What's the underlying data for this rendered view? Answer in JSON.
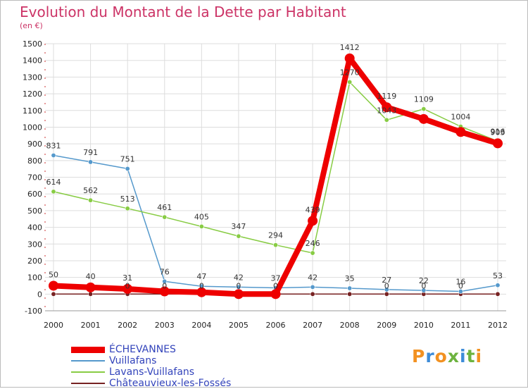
{
  "title": "Evolution du Montant de la Dette par Habitant",
  "subtitle": "(en €)",
  "brand": {
    "letters": [
      "P",
      "r",
      "o",
      "x",
      "i",
      "t",
      "i"
    ],
    "colors": [
      "#f29121",
      "#3d8cd8",
      "#f29121",
      "#6db33f",
      "#3d8cd8",
      "#6db33f",
      "#f29121"
    ]
  },
  "chart_data": {
    "type": "line",
    "x": [
      "2000",
      "2001",
      "2002",
      "2003",
      "2004",
      "2005",
      "2006",
      "2007",
      "2008",
      "2009",
      "2010",
      "2011",
      "2012"
    ],
    "ylim": [
      -100,
      1500
    ],
    "yticks": [
      "-100",
      "0",
      "100",
      "200",
      "300",
      "400",
      "500",
      "600",
      "700",
      "800",
      "900",
      "1000",
      "1100",
      "1200",
      "1300",
      "1400",
      "1500"
    ],
    "grid": true,
    "legend_position": "bottom-left",
    "series": [
      {
        "name": "ÉCHEVANNES",
        "color": "#ee0000",
        "values": [
          50,
          40,
          31,
          16,
          11,
          0,
          0,
          439,
          1412,
          1119,
          1049,
          971,
          903
        ],
        "labels": [
          "50",
          "40",
          "31",
          "",
          "",
          "",
          "",
          "439",
          "1412",
          "1119",
          "",
          "",
          "903"
        ]
      },
      {
        "name": "Vuillafans",
        "color": "#5599cc",
        "values": [
          831,
          791,
          751,
          76,
          47,
          42,
          37,
          42,
          35,
          27,
          22,
          16,
          53
        ],
        "labels": [
          "831",
          "791",
          "751",
          "76",
          "47",
          "42",
          "37",
          "42",
          "35",
          "27",
          "22",
          "16",
          "53"
        ]
      },
      {
        "name": "Lavans-Vuillafans",
        "color": "#88cc44",
        "values": [
          614,
          562,
          513,
          461,
          405,
          347,
          294,
          246,
          1270,
          1043,
          1109,
          1004,
          916
        ],
        "labels": [
          "614",
          "562",
          "513",
          "461",
          "405",
          "347",
          "294",
          "246",
          "1270",
          "1043",
          "1109",
          "1004",
          "916"
        ]
      },
      {
        "name": "Châteauvieux-les-Fossés",
        "color": "#772222",
        "values": [
          0,
          0,
          0,
          0,
          0,
          0,
          0,
          0,
          0,
          0,
          0,
          0,
          0
        ],
        "labels": [
          "",
          "",
          "0",
          "0",
          "0",
          "0",
          "0",
          "",
          "",
          "0",
          "0",
          "0",
          ""
        ]
      }
    ]
  }
}
